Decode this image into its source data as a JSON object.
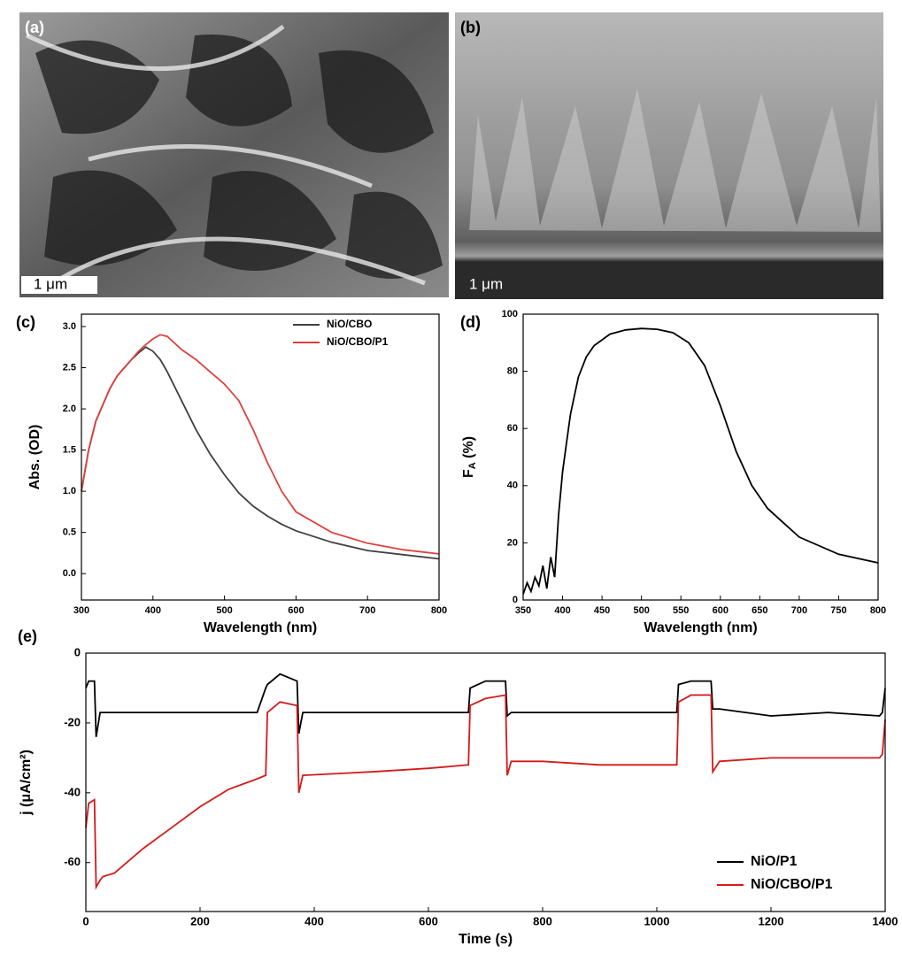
{
  "panels": [
    {
      "label": "(a)",
      "scale_bar": "1 μm"
    },
    {
      "label": "(b)",
      "scale_bar": "1 μm"
    }
  ],
  "chart_data": [
    {
      "type": "line",
      "label": "(c)",
      "x_label": "Wavelength (nm)",
      "y_label": "Abs. (OD)",
      "legend": "upper right",
      "xlim": [
        300,
        800
      ],
      "ylim": [
        -0.32,
        3.15
      ],
      "xticks": [
        300,
        400,
        500,
        600,
        700,
        800
      ],
      "yticks": [
        {
          "value": 0,
          "label": "0.0"
        },
        {
          "value": 0.5,
          "label": "0.5"
        },
        {
          "value": 1,
          "label": "1.0"
        },
        {
          "value": 1.5,
          "label": "1.5"
        },
        {
          "value": 2,
          "label": "2.0"
        },
        {
          "value": 2.5,
          "label": "2.5"
        },
        {
          "value": 3,
          "label": "3.0"
        }
      ],
      "x": [
        300,
        310,
        320,
        330,
        340,
        350,
        360,
        370,
        380,
        390,
        400,
        410,
        420,
        440,
        460,
        480,
        500,
        520,
        540,
        560,
        580,
        600,
        650,
        700,
        750,
        800
      ],
      "series": [
        {
          "name": "NiO/CBO",
          "color": "#404040",
          "values": [
            1.0,
            1.5,
            1.85,
            2.05,
            2.25,
            2.4,
            2.5,
            2.6,
            2.68,
            2.75,
            2.7,
            2.6,
            2.45,
            2.1,
            1.75,
            1.45,
            1.2,
            0.98,
            0.82,
            0.7,
            0.6,
            0.52,
            0.38,
            0.28,
            0.23,
            0.18
          ]
        },
        {
          "name": "NiO/CBO/P1",
          "color": "#e0403c",
          "values": [
            1.0,
            1.5,
            1.85,
            2.05,
            2.25,
            2.4,
            2.5,
            2.6,
            2.7,
            2.78,
            2.85,
            2.9,
            2.88,
            2.72,
            2.6,
            2.45,
            2.3,
            2.1,
            1.75,
            1.35,
            1.0,
            0.75,
            0.5,
            0.37,
            0.29,
            0.24
          ]
        }
      ]
    },
    {
      "type": "line",
      "label": "(d)",
      "x_label": "Wavelength (nm)",
      "y_label": [
        "F",
        "A",
        " (%)"
      ],
      "xlim": [
        350,
        800
      ],
      "ylim": [
        0,
        100
      ],
      "xticks": [
        350,
        400,
        450,
        500,
        550,
        600,
        650,
        700,
        750,
        800
      ],
      "yticks": [
        0,
        20,
        40,
        60,
        80,
        100
      ],
      "x": [
        350,
        355,
        360,
        365,
        370,
        375,
        380,
        385,
        390,
        395,
        400,
        405,
        410,
        420,
        430,
        440,
        450,
        460,
        480,
        500,
        520,
        540,
        560,
        580,
        600,
        620,
        640,
        660,
        700,
        750,
        800
      ],
      "series": [
        {
          "color": "#000000",
          "values": [
            2,
            6,
            3,
            8,
            5,
            12,
            4,
            15,
            8,
            30,
            45,
            55,
            65,
            78,
            85,
            89,
            91,
            93,
            94.5,
            95,
            94.7,
            93.5,
            90,
            82,
            68,
            52,
            40,
            32,
            22,
            16,
            13
          ]
        }
      ]
    },
    {
      "type": "line",
      "label": "(e)",
      "x_label": "Time (s)",
      "y_label": "j (μA/cm²)",
      "legend": "lower right",
      "xlim": [
        0,
        1400
      ],
      "ylim": [
        -74,
        0
      ],
      "xticks": [
        0,
        200,
        400,
        600,
        800,
        1000,
        1200,
        1400
      ],
      "yticks": [
        0,
        -20,
        -40,
        -60
      ],
      "x": [
        0,
        5,
        15,
        18,
        25,
        30,
        50,
        100,
        150,
        200,
        250,
        300,
        315,
        318,
        340,
        370,
        373,
        380,
        500,
        600,
        670,
        673,
        700,
        735,
        738,
        745,
        800,
        900,
        1000,
        1035,
        1038,
        1060,
        1095,
        1098,
        1110,
        1200,
        1300,
        1390,
        1395,
        1400
      ],
      "series": [
        {
          "name": "NiO/P1",
          "color": "#000000",
          "values": [
            -10,
            -8,
            -8,
            -24,
            -17,
            -17,
            -17,
            -17,
            -17,
            -17,
            -17,
            -17,
            -10,
            -9,
            -6,
            -8,
            -23,
            -17,
            -17,
            -17,
            -17,
            -10,
            -8,
            -8,
            -18,
            -17,
            -17,
            -17,
            -17,
            -17,
            -9,
            -8,
            -8,
            -16,
            -16,
            -18,
            -17,
            -18,
            -17,
            -10
          ]
        },
        {
          "name": "NiO/CBO/P1",
          "color": "#d41a1a",
          "values": [
            -50,
            -43,
            -42,
            -67,
            -65,
            -64,
            -63,
            -56,
            -50,
            -44,
            -39,
            -36,
            -35,
            -17,
            -14,
            -15,
            -40,
            -35,
            -34,
            -33,
            -32,
            -15,
            -13,
            -12,
            -35,
            -31,
            -31,
            -32,
            -32,
            -32,
            -14,
            -12,
            -12,
            -34,
            -31,
            -30,
            -30,
            -30,
            -29,
            -19
          ]
        }
      ]
    }
  ]
}
